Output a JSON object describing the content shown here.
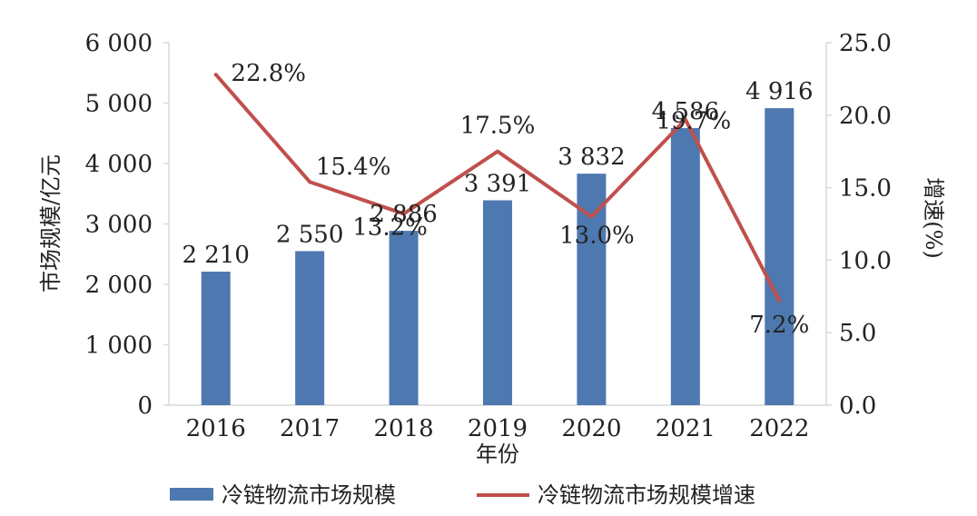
{
  "chart_data": {
    "type": "bar",
    "categories": [
      "2016",
      "2017",
      "2018",
      "2019",
      "2020",
      "2021",
      "2022"
    ],
    "series": [
      {
        "name": "冷链物流市场规模",
        "type": "bar",
        "axis": "left",
        "values": [
          2210,
          2550,
          2886,
          3391,
          3832,
          4586,
          4916
        ],
        "labels": [
          "2 210",
          "2 550",
          "2 886",
          "3 391",
          "3 832",
          "4 586",
          "4 916"
        ]
      },
      {
        "name": "冷链物流市场规模增速",
        "type": "line",
        "axis": "right",
        "values": [
          22.8,
          15.4,
          13.2,
          17.5,
          13.0,
          19.7,
          7.2
        ],
        "labels": [
          "22.8%",
          "15.4%",
          "13.2%",
          "17.5%",
          "13.0%",
          "19.7%",
          "7.2%"
        ]
      }
    ],
    "xlabel": "年份",
    "ylabel": "市场规模/亿元",
    "y2label": "增速(%)",
    "ylim": [
      0,
      6000
    ],
    "y2lim": [
      0,
      25
    ],
    "y_ticks": [
      "0",
      "1 000",
      "2 000",
      "3 000",
      "4 000",
      "5 000",
      "6 000"
    ],
    "y2_ticks": [
      "0.0",
      "5.0",
      "10.0",
      "15.0",
      "20.0",
      "25.0"
    ],
    "grid": false,
    "legend_position": "bottom",
    "colors": {
      "bar": "#4E79B0",
      "line": "#C0504D",
      "axis": "#d9d9d9"
    }
  }
}
